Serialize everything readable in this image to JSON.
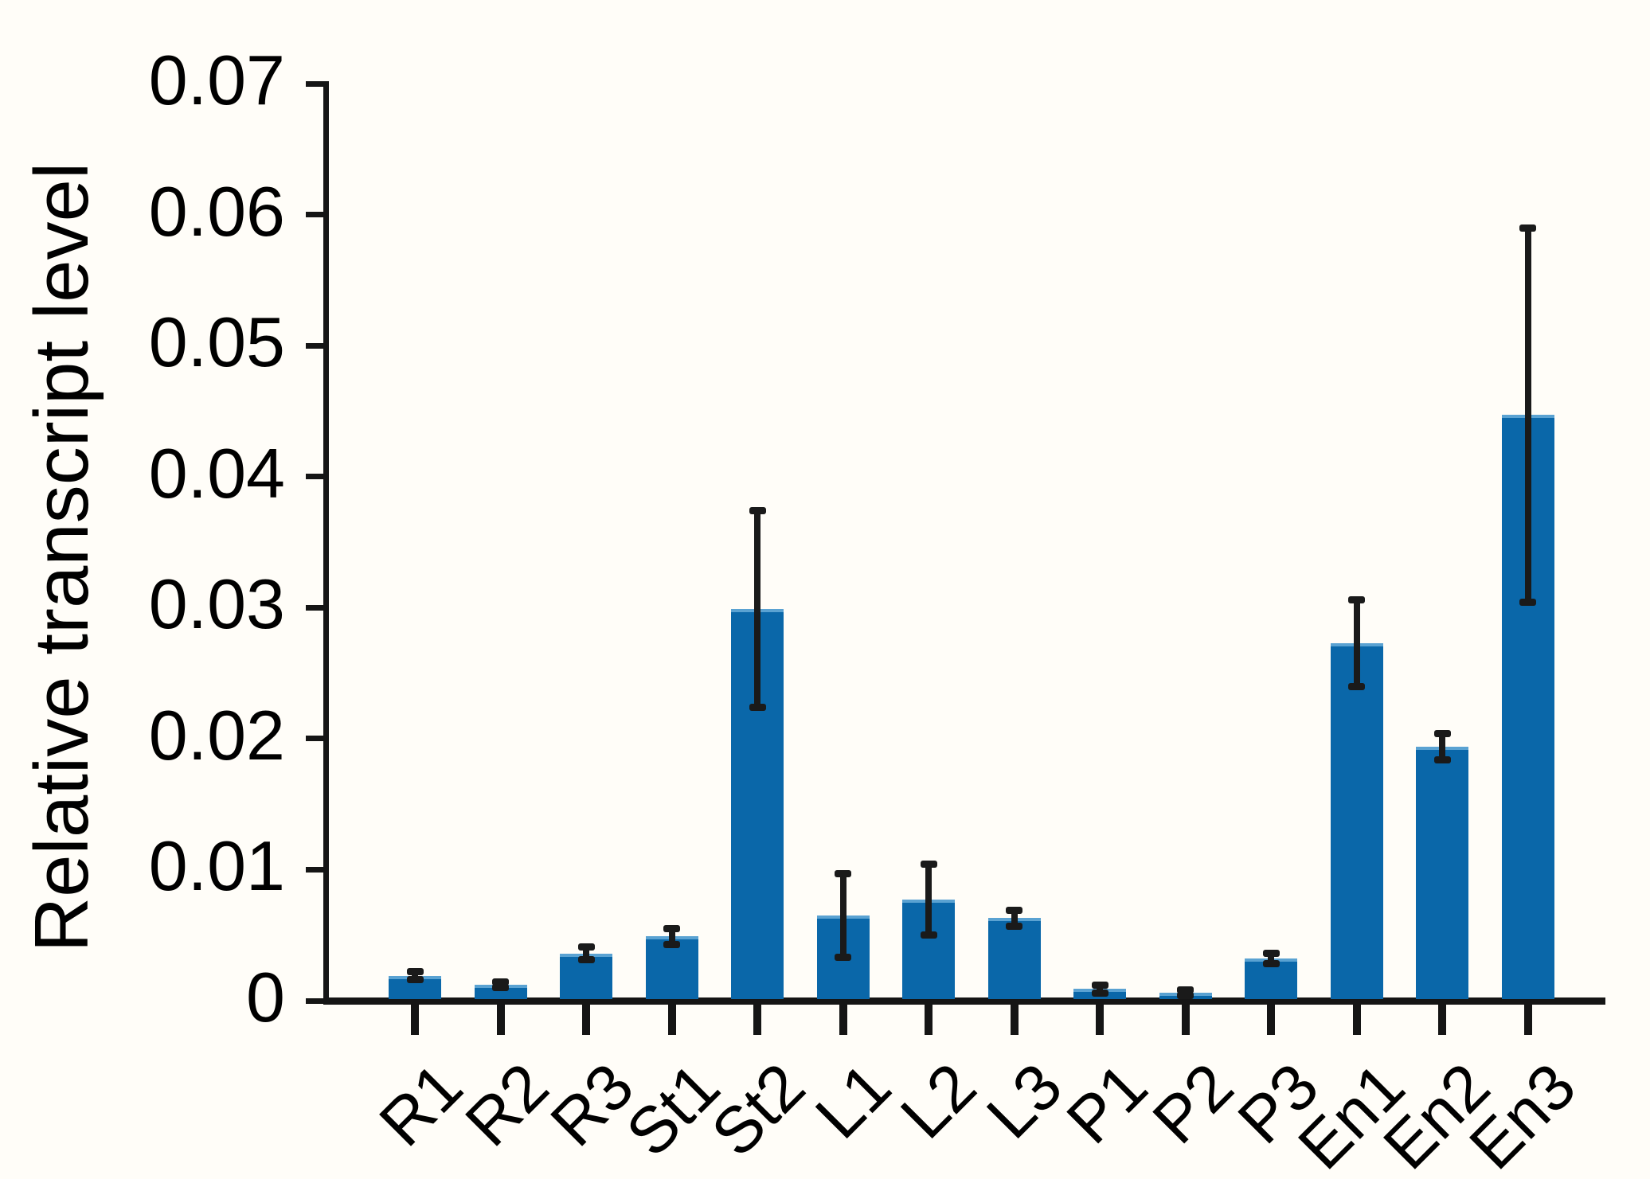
{
  "figure": {
    "background_color": "#fffdf8",
    "bar_color": "#0a67a9",
    "bar_top_edge_color": "#5aa2d2",
    "axis_color": "#151515",
    "error_bar_color": "#1a1a1a",
    "text_color": "#000000"
  },
  "chart_data": {
    "type": "bar",
    "title": "",
    "xlabel": "",
    "ylabel": "Relative transcript level",
    "ylim": [
      0,
      0.07
    ],
    "ytick_step": 0.01,
    "ytick_labels": [
      "0",
      "0.01",
      "0.02",
      "0.03",
      "0.04",
      "0.05",
      "0.06",
      "0.07"
    ],
    "grid": false,
    "legend": null,
    "categories": [
      "R1",
      "R2",
      "R3",
      "St1",
      "St2",
      "L1",
      "L2",
      "L3",
      "P1",
      "P2",
      "P3",
      "En1",
      "En2",
      "En3"
    ],
    "series": [
      {
        "name": "Relative transcript level",
        "values": [
          0.0019,
          0.0012,
          0.0036,
          0.0049,
          0.0299,
          0.0065,
          0.0077,
          0.0063,
          0.0009,
          0.0006,
          0.0032,
          0.0273,
          0.0194,
          0.0447
        ],
        "errors": [
          0.0003,
          0.0002,
          0.0005,
          0.0006,
          0.0075,
          0.0032,
          0.0027,
          0.0006,
          0.0003,
          0.0002,
          0.0004,
          0.0033,
          0.001,
          0.0143
        ],
        "error_bar_style": "symmetric-with-caps"
      }
    ]
  }
}
